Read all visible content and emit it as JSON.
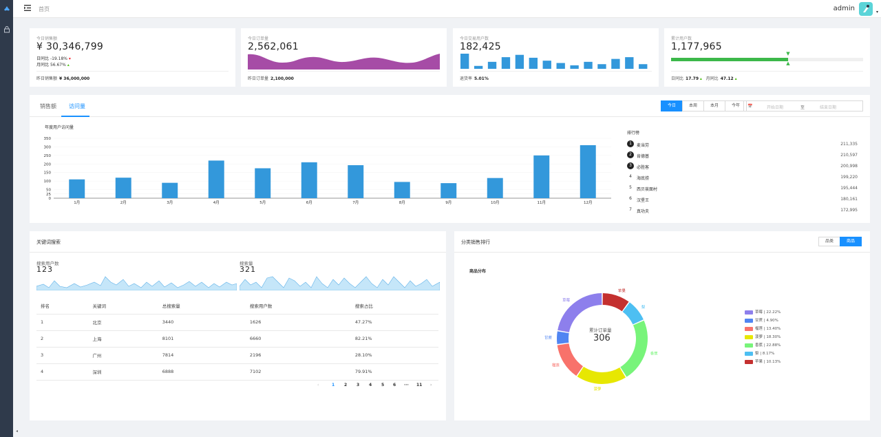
{
  "header": {
    "breadcrumb": "首页",
    "user": "admin"
  },
  "stats": [
    {
      "label": "今日销售额",
      "value": "¥ 30,346,799",
      "trend1_label": "日同比",
      "trend1_value": "-19.18%",
      "trend2_label": "月同比",
      "trend2_value": "56.67%",
      "foot_label": "昨日销售额",
      "foot_value": "¥ 36,000,000"
    },
    {
      "label": "今日订单量",
      "value": "2,562,061",
      "foot_label": "昨日订单量",
      "foot_value": "2,100,000"
    },
    {
      "label": "今日交易用户数",
      "value": "182,425",
      "foot_label": "退货率",
      "foot_value": "5.01%",
      "bars": [
        26,
        5,
        12,
        20,
        24,
        19,
        14,
        10,
        6,
        12,
        8,
        17,
        20,
        8
      ]
    },
    {
      "label": "累计用户数",
      "value": "1,177,965",
      "progress": 0.61,
      "foot1_label": "日同比",
      "foot1_value": "17.79",
      "foot2_label": "月同比",
      "foot2_value": "47.12"
    }
  ],
  "sales": {
    "tabs": [
      "销售额",
      "访问量"
    ],
    "active_tab": 1,
    "range_buttons": [
      "今日",
      "本周",
      "本月",
      "今年"
    ],
    "date_range": {
      "icon_text": "📅",
      "start_placeholder": "开始日期",
      "separator": "至",
      "end_placeholder": "结束日期"
    },
    "chart_title": "年度用户访问量",
    "ranking_title": "排行榜",
    "ranking": [
      {
        "no": "1",
        "name": "麦当劳",
        "value": "211,335"
      },
      {
        "no": "2",
        "name": "肯德基",
        "value": "210,597"
      },
      {
        "no": "3",
        "name": "必胜客",
        "value": "200,998"
      },
      {
        "no": "4",
        "name": "海底捞",
        "value": "199,220"
      },
      {
        "no": "5",
        "name": "西贝莜面村",
        "value": "195,444"
      },
      {
        "no": "6",
        "name": "汉堡王",
        "value": "180,161"
      },
      {
        "no": "7",
        "name": "真功夫",
        "value": "172,995"
      }
    ]
  },
  "keywords": {
    "title": "关键词搜索",
    "users_label": "搜索用户数",
    "users_value": "123",
    "search_label": "搜索量",
    "search_value": "321",
    "columns": [
      "排名",
      "关键词",
      "总搜索量",
      "搜索用户数",
      "搜索占比"
    ],
    "rows": [
      [
        "1",
        "北京",
        "3440",
        "1626",
        "47.27%"
      ],
      [
        "2",
        "上海",
        "8101",
        "6660",
        "82.21%"
      ],
      [
        "3",
        "广州",
        "7814",
        "2196",
        "28.10%"
      ],
      [
        "4",
        "深圳",
        "6888",
        "7102",
        "79.91%"
      ]
    ],
    "pager": {
      "prev": "‹",
      "pages": [
        "1",
        "2",
        "3",
        "4",
        "5",
        "6",
        "···",
        "11"
      ],
      "next": "›",
      "current": "1"
    }
  },
  "category": {
    "title": "分类销售排行",
    "segments": [
      "品类",
      "商品"
    ],
    "active_segment": 1,
    "chart_label": "商品分布",
    "center_label": "累计订单量",
    "center_value": "306"
  },
  "chart_data": [
    {
      "type": "bar",
      "title": "年度用户访问量",
      "categories": [
        "1月",
        "2月",
        "3月",
        "4月",
        "5月",
        "6月",
        "7月",
        "8月",
        "9月",
        "10月",
        "11月",
        "12月"
      ],
      "values": [
        110,
        120,
        90,
        220,
        175,
        210,
        193,
        95,
        88,
        118,
        250,
        310
      ],
      "ylim": [
        0,
        350
      ],
      "yticks": [
        0,
        25,
        50,
        100,
        150,
        200,
        250,
        300,
        350
      ],
      "color": "#3398db"
    },
    {
      "type": "pie",
      "title": "商品分布",
      "labels": [
        "草莓",
        "甘蔗",
        "榴莲",
        "菠萝",
        "香蕉",
        "梨",
        "苹果"
      ],
      "values": [
        22.22,
        4.9,
        13.4,
        18.3,
        22.88,
        8.17,
        10.13
      ],
      "colors": [
        "#8d7fec",
        "#5085f2",
        "#f8726b",
        "#e7e702",
        "#78f47a",
        "#4dbff2",
        "#c4302f"
      ],
      "order_clockwise": [
        "苹果",
        "梨",
        "香蕉",
        "菠萝",
        "榴莲",
        "甘蔗",
        "草莓"
      ]
    }
  ]
}
